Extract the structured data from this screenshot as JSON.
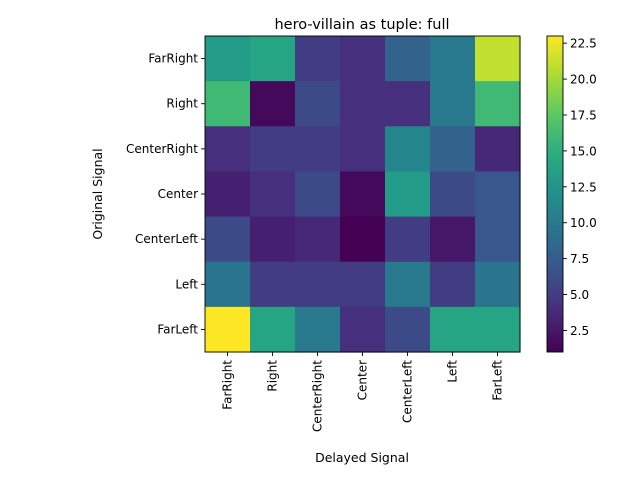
{
  "chart_data": {
    "type": "heatmap",
    "title": "hero-villain as tuple: full",
    "xlabel": "Delayed Signal",
    "ylabel": "Original Signal",
    "x_categories": [
      "FarRight",
      "Right",
      "CenterRight",
      "Center",
      "CenterLeft",
      "Left",
      "FarLeft"
    ],
    "y_categories": [
      "FarRight",
      "Right",
      "CenterRight",
      "Center",
      "CenterLeft",
      "Left",
      "FarLeft"
    ],
    "values": [
      [
        13,
        14,
        5,
        4,
        8,
        10,
        21
      ],
      [
        16,
        1.5,
        6,
        4,
        4,
        10,
        16
      ],
      [
        4,
        5,
        5,
        4,
        11,
        8,
        3.5
      ],
      [
        3,
        4,
        6,
        1.5,
        13,
        6,
        7
      ],
      [
        6,
        3,
        3.5,
        1,
        5,
        2.5,
        7
      ],
      [
        9.5,
        5,
        5,
        5,
        10,
        5,
        9.5
      ],
      [
        23,
        14,
        10,
        4,
        6,
        14,
        14
      ]
    ],
    "colorbar": {
      "min": 1,
      "max": 23,
      "ticks": [
        2.5,
        5.0,
        7.5,
        10.0,
        12.5,
        15.0,
        17.5,
        20.0,
        22.5
      ],
      "tick_labels": [
        "2.5",
        "5.0",
        "7.5",
        "10.0",
        "12.5",
        "15.0",
        "17.5",
        "20.0",
        "22.5"
      ],
      "colormap": "viridis"
    },
    "colors": {
      "axis": "#000000",
      "background": "#ffffff"
    }
  }
}
